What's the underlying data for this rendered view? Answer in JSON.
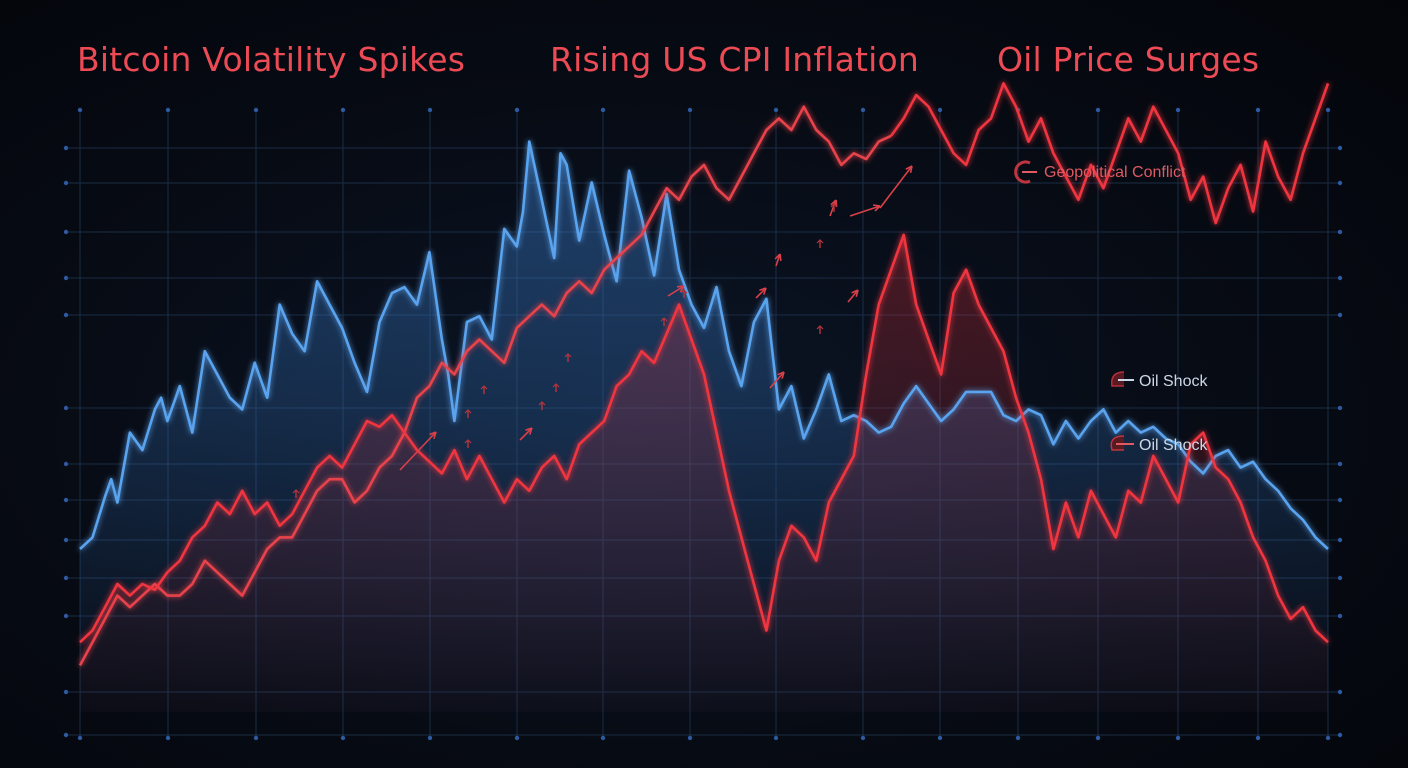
{
  "headlines": [
    "Bitcoin Volatility Spikes",
    "Rising US CPI Inflation",
    "Oil Price Surges"
  ],
  "annotations": [
    {
      "name": "geopolitical-conflict",
      "text": "Geopolitical Conflict"
    },
    {
      "name": "oil-shock-1",
      "text": "Oil Shock"
    },
    {
      "name": "oil-shock-2",
      "text": "Oil Shock"
    }
  ],
  "colors": {
    "bitcoin": "#5aa3ee",
    "cpi": "#e8434c",
    "oil": "#f0363f",
    "grid": "#1a2c45",
    "dots": "#2d5aa0",
    "headline": "#ec4b55",
    "annot_geo": "#e05a62",
    "annot_oil": "#cdd8e6"
  },
  "chart_data": {
    "type": "line",
    "title": "",
    "xlabel": "",
    "ylabel": "",
    "grid": true,
    "xlim": [
      0,
      100
    ],
    "ylim": [
      0,
      100
    ],
    "series": [
      {
        "key": "bitcoin",
        "x": [
          0,
          1,
          2,
          2.5,
          3,
          4,
          5,
          6,
          6.5,
          7,
          8,
          9,
          10,
          11,
          12,
          13,
          14,
          15,
          16,
          17,
          18,
          19,
          20,
          21,
          22,
          23,
          24,
          25,
          26,
          27,
          28,
          29,
          29.5,
          30,
          31,
          32,
          33,
          34,
          35,
          35.5,
          36,
          37,
          38,
          38.5,
          39,
          40,
          41,
          42,
          43,
          44,
          45,
          46,
          47,
          48,
          49,
          50,
          51,
          52,
          53,
          54,
          55,
          56,
          57,
          58,
          59,
          60,
          61,
          62,
          63,
          64,
          65,
          66,
          67,
          68,
          69,
          70,
          71,
          72,
          73,
          74,
          75,
          76,
          77,
          78,
          79,
          80,
          81,
          82,
          83,
          84,
          85,
          86,
          87,
          88,
          89,
          90,
          91,
          92,
          93,
          94,
          95,
          96,
          97,
          98,
          99,
          100
        ],
        "values": [
          28,
          30,
          37,
          40,
          36,
          48,
          45,
          52,
          54,
          50,
          56,
          48,
          62,
          58,
          54,
          52,
          60,
          54,
          70,
          65,
          62,
          74,
          70,
          66,
          60,
          55,
          67,
          72,
          73,
          70,
          79,
          64,
          58,
          50,
          67,
          68,
          64,
          83,
          80,
          86,
          98,
          88,
          78,
          96,
          94,
          81,
          91,
          82,
          74,
          93,
          85,
          75,
          89,
          76,
          70,
          66,
          73,
          62,
          56,
          67,
          71,
          52,
          56,
          47,
          52,
          58,
          50,
          51,
          50,
          48,
          49,
          53,
          56,
          53,
          50,
          52,
          55,
          55,
          55,
          51,
          50,
          52,
          51,
          46,
          50,
          47,
          50,
          52,
          48,
          50,
          48,
          49,
          47,
          46,
          43,
          41,
          44,
          45,
          42,
          43,
          40,
          38,
          35,
          33,
          30,
          28
        ]
      },
      {
        "key": "cpi",
        "x": [
          0,
          1,
          2,
          3,
          4,
          5,
          6,
          7,
          8,
          9,
          10,
          11,
          12,
          13,
          14,
          15,
          16,
          17,
          18,
          19,
          20,
          21,
          22,
          23,
          24,
          25,
          26,
          27,
          28,
          29,
          30,
          31,
          32,
          33,
          34,
          35,
          36,
          37,
          38,
          39,
          40,
          41,
          42,
          43,
          44,
          45,
          46,
          47,
          48,
          49,
          50,
          51,
          52,
          53,
          54,
          55,
          56,
          57,
          58,
          59,
          60,
          61,
          62,
          63,
          64,
          65
        ],
        "values": [
          8,
          12,
          16,
          20,
          18,
          20,
          22,
          20,
          20,
          22,
          26,
          24,
          22,
          20,
          24,
          28,
          30,
          30,
          34,
          38,
          40,
          40,
          36,
          38,
          42,
          44,
          48,
          54,
          56,
          60,
          58,
          62,
          64,
          62,
          60,
          66,
          68,
          70,
          68,
          72,
          74,
          72,
          76,
          78,
          80,
          82,
          86,
          90,
          88,
          92,
          94,
          90,
          88,
          92,
          96,
          100,
          102,
          100,
          104,
          100,
          98,
          94,
          96,
          95,
          98,
          99
        ]
      },
      {
        "key": "oil",
        "x": [
          0,
          1,
          2,
          3,
          4,
          5,
          6,
          7,
          8,
          9,
          10,
          11,
          12,
          13,
          14,
          15,
          16,
          17,
          18,
          19,
          20,
          21,
          22,
          23,
          24,
          25,
          26,
          27,
          28,
          29,
          30,
          31,
          32,
          33,
          34,
          35,
          36,
          37,
          38,
          39,
          40,
          41,
          42,
          43,
          44,
          45,
          46,
          47,
          48,
          49,
          50,
          51,
          52,
          53,
          54,
          55,
          56,
          57,
          58,
          59,
          60,
          61,
          62,
          63,
          64,
          65,
          66,
          67,
          68,
          69,
          70,
          71,
          72,
          73,
          74,
          75,
          76,
          77,
          78,
          79,
          80,
          81,
          82,
          83,
          84,
          85,
          86,
          87,
          88,
          89,
          90,
          91,
          92,
          93,
          94,
          95,
          96,
          97,
          98,
          99,
          100
        ],
        "values": [
          12,
          14,
          18,
          22,
          20,
          22,
          21,
          24,
          26,
          30,
          32,
          36,
          34,
          38,
          34,
          36,
          32,
          34,
          38,
          42,
          44,
          42,
          46,
          50,
          49,
          51,
          48,
          45,
          43,
          41,
          45,
          40,
          44,
          40,
          36,
          40,
          38,
          42,
          44,
          40,
          46,
          48,
          50,
          56,
          58,
          62,
          60,
          65,
          70,
          64,
          58,
          48,
          38,
          30,
          22,
          14,
          26,
          32,
          30,
          26,
          36,
          40,
          44,
          58,
          70,
          76,
          82,
          70,
          64,
          58,
          72,
          76,
          70,
          66,
          62,
          54,
          48,
          40,
          28,
          36,
          30,
          38,
          34,
          30,
          38,
          36,
          44,
          40,
          36,
          46,
          48,
          42,
          40,
          36,
          30,
          26,
          20,
          16,
          18,
          14,
          12
        ]
      },
      {
        "key": "oil_surge",
        "x": [
          65,
          66,
          67,
          68,
          69,
          70,
          71,
          72,
          73,
          74,
          75,
          76,
          77,
          78,
          79,
          80,
          81,
          82,
          83,
          84,
          85,
          86,
          87,
          88,
          89,
          90,
          91,
          92,
          93,
          94,
          95,
          96,
          97,
          98,
          99,
          100
        ],
        "values": [
          99,
          102,
          106,
          104,
          100,
          96,
          94,
          100,
          102,
          108,
          104,
          98,
          102,
          96,
          92,
          88,
          94,
          90,
          96,
          102,
          98,
          104,
          100,
          96,
          88,
          92,
          84,
          90,
          94,
          86,
          98,
          92,
          88,
          96,
          102,
          108
        ]
      }
    ]
  }
}
